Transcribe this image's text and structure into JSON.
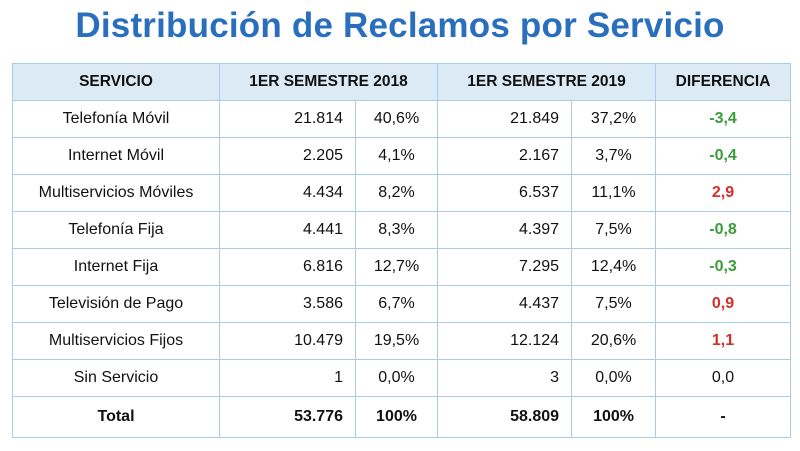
{
  "title": "Distribución de Reclamos por Servicio",
  "headers": {
    "servicio": "SERVICIO",
    "sem2018": "1ER SEMESTRE 2018",
    "sem2019": "1ER SEMESTRE 2019",
    "diferencia": "DIFERENCIA"
  },
  "rows": [
    {
      "servicio": "Telefonía Móvil",
      "v2018": "21.814",
      "p2018": "40,6%",
      "v2019": "21.849",
      "p2019": "37,2%",
      "diff": "-3,4",
      "diff_sign": "neg"
    },
    {
      "servicio": "Internet Móvil",
      "v2018": "2.205",
      "p2018": "4,1%",
      "v2019": "2.167",
      "p2019": "3,7%",
      "diff": "-0,4",
      "diff_sign": "neg"
    },
    {
      "servicio": "Multiservicios Móviles",
      "v2018": "4.434",
      "p2018": "8,2%",
      "v2019": "6.537",
      "p2019": "11,1%",
      "diff": "2,9",
      "diff_sign": "pos"
    },
    {
      "servicio": "Telefonía Fija",
      "v2018": "4.441",
      "p2018": "8,3%",
      "v2019": "4.397",
      "p2019": "7,5%",
      "diff": "-0,8",
      "diff_sign": "neg"
    },
    {
      "servicio": "Internet Fija",
      "v2018": "6.816",
      "p2018": "12,7%",
      "v2019": "7.295",
      "p2019": "12,4%",
      "diff": "-0,3",
      "diff_sign": "neg"
    },
    {
      "servicio": "Televisión de Pago",
      "v2018": "3.586",
      "p2018": "6,7%",
      "v2019": "4.437",
      "p2019": "7,5%",
      "diff": "0,9",
      "diff_sign": "pos"
    },
    {
      "servicio": "Multiservicios Fijos",
      "v2018": "10.479",
      "p2018": "19,5%",
      "v2019": "12.124",
      "p2019": "20,6%",
      "diff": "1,1",
      "diff_sign": "pos"
    },
    {
      "servicio": "Sin Servicio",
      "v2018": "1",
      "p2018": "0,0%",
      "v2019": "3",
      "p2019": "0,0%",
      "diff": "0,0",
      "diff_sign": "zero"
    }
  ],
  "total": {
    "servicio": "Total",
    "v2018": "53.776",
    "p2018": "100%",
    "v2019": "58.809",
    "p2019": "100%",
    "diff": "-",
    "diff_sign": "dash"
  },
  "colors": {
    "title": "#2a6fbd",
    "header_bg": "#dbeaf5",
    "border": "#a9cbe3",
    "negative": "#3a9c3a",
    "positive": "#d0302a"
  }
}
